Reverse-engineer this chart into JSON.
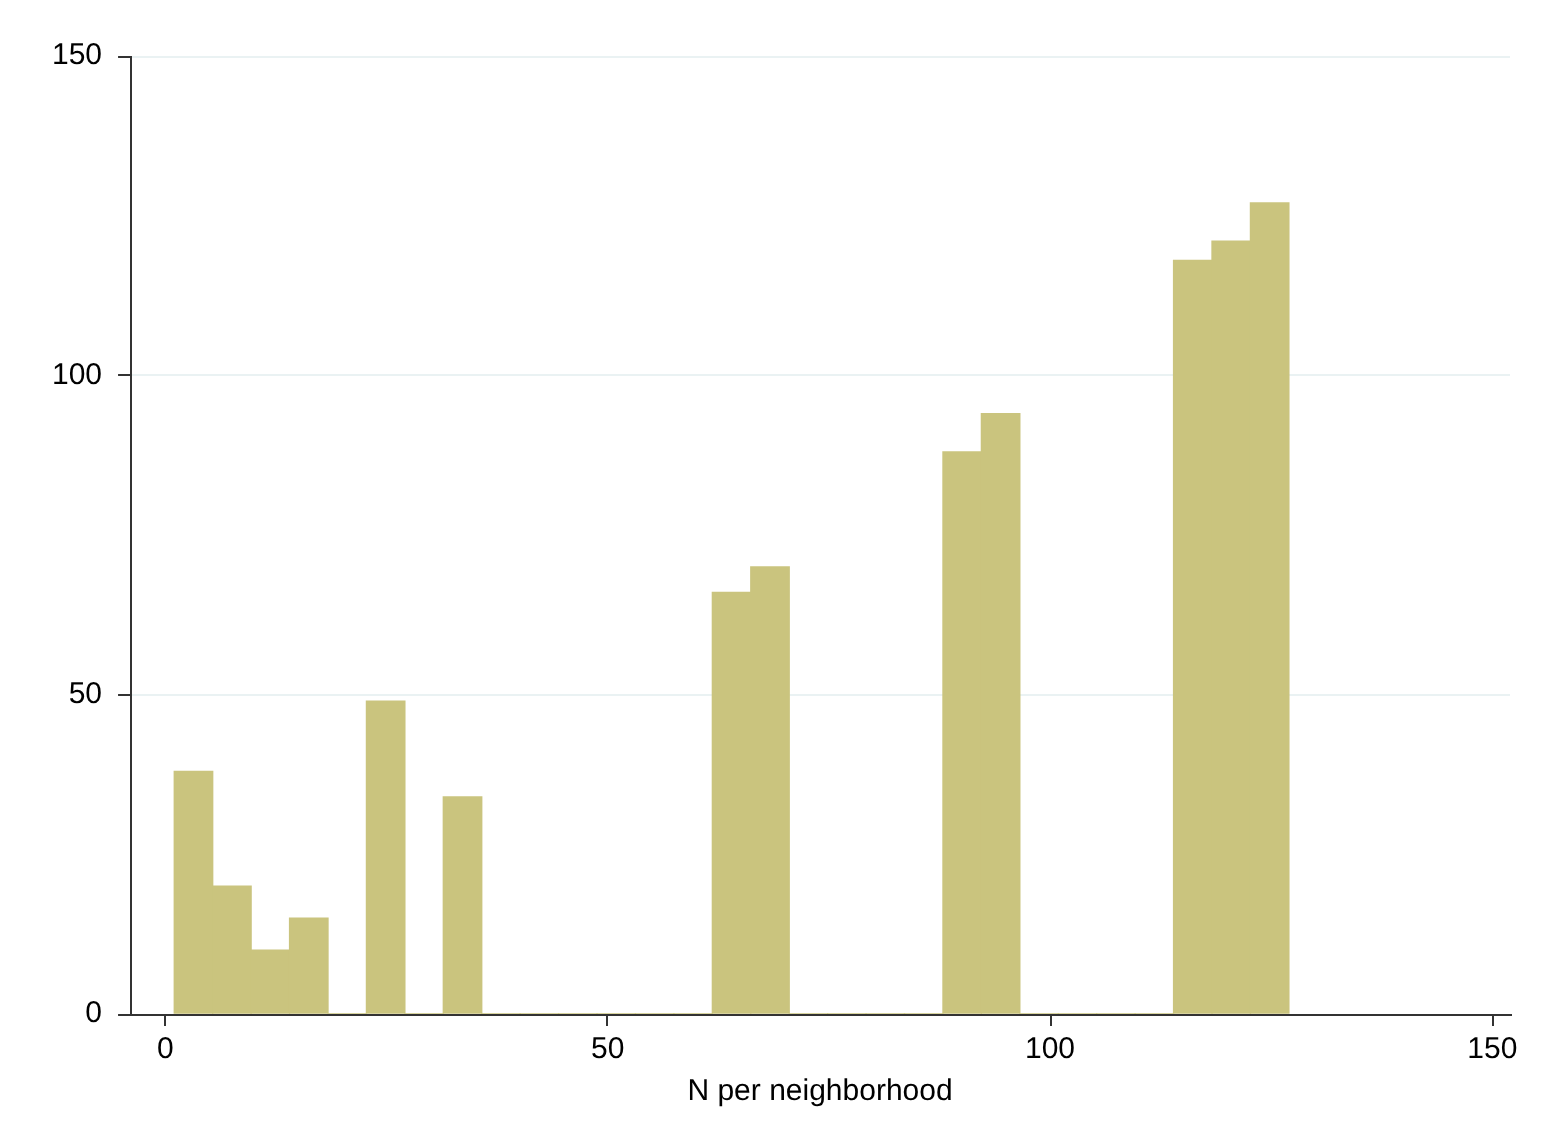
{
  "chart_data": {
    "type": "histogram",
    "xlabel": "N per neighborhood",
    "bins": [
      1,
      5.34,
      9.69,
      14.03,
      18.38,
      22.72,
      27.07,
      31.41,
      35.76,
      40.1,
      44.45,
      48.79,
      53.14,
      57.48,
      61.83,
      66.17,
      70.52,
      74.86,
      79.21,
      83.55,
      87.9,
      92.24,
      96.59,
      100.93,
      105.28,
      109.62,
      113.97,
      118.31,
      122.66,
      127
    ],
    "values": [
      38,
      20,
      10,
      15,
      0,
      49,
      0,
      34,
      0,
      0,
      0,
      0,
      0,
      0,
      66,
      70,
      0,
      0,
      0,
      0,
      88,
      94,
      0,
      0,
      0,
      0,
      118,
      121,
      127
    ],
    "color": "#cac47e",
    "xlim": [
      -4,
      152
    ],
    "xticks": [
      0,
      50,
      100,
      150
    ],
    "ylim": [
      0,
      150
    ],
    "yticks": [
      0,
      50,
      100,
      150
    ],
    "grid": "y",
    "legend": false
  }
}
